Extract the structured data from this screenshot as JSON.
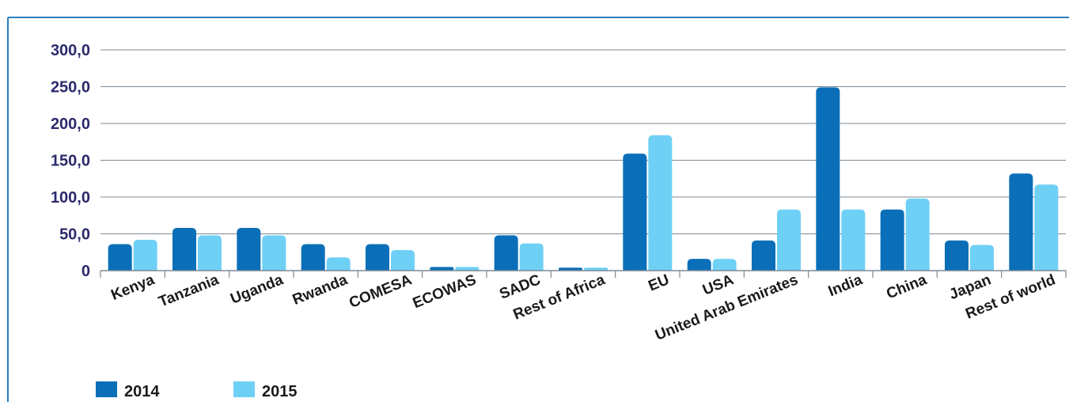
{
  "colors": {
    "series_2014": "#0a6fb8",
    "series_2015": "#6fd0f6",
    "frame": "#2a7fc1",
    "grid": "#7d8a96",
    "axis_text": "#2b2a6b"
  },
  "chart_data": {
    "type": "bar",
    "categories": [
      "Kenya",
      "Tanzania",
      "Uganda",
      "Rwanda",
      "COMESA",
      "ECOWAS",
      "SADC",
      "Rest of Africa",
      "EU",
      "USA",
      "United Arab Emirates",
      "India",
      "China",
      "Japan",
      "Rest of world"
    ],
    "series": [
      {
        "name": "2014",
        "values": [
          36,
          58,
          58,
          36,
          36,
          5,
          48,
          4,
          159,
          16,
          41,
          249,
          83,
          41,
          132
        ]
      },
      {
        "name": "2015",
        "values": [
          42,
          48,
          48,
          18,
          28,
          5,
          37,
          4,
          184,
          16,
          83,
          83,
          98,
          35,
          117
        ]
      }
    ],
    "yticks": [
      "0",
      "50,0",
      "100,0",
      "150,0",
      "200,0",
      "250,0",
      "300,0"
    ],
    "ylim": [
      0,
      300
    ],
    "grid": true,
    "legend_position": "bottom-left"
  }
}
